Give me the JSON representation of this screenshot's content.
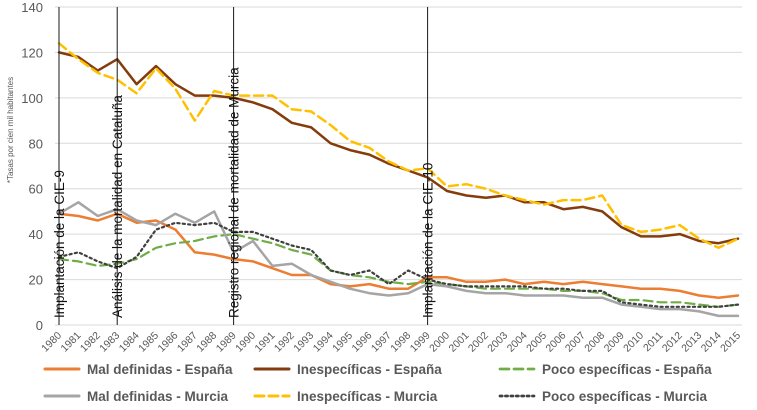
{
  "chart_data": {
    "type": "line",
    "title": "",
    "xlabel": "",
    "ylabel": "*Tasas por cien mil habitantes",
    "ylim": [
      0,
      140
    ],
    "yticks": [
      0,
      20,
      40,
      60,
      80,
      100,
      120,
      140
    ],
    "grid": true,
    "legend_position": "bottom",
    "x": [
      "1980",
      "1981",
      "1982",
      "1983",
      "1984",
      "1985",
      "1986",
      "1987",
      "1988",
      "1989",
      "1990",
      "1991",
      "1992",
      "1993",
      "1994",
      "1995",
      "1996",
      "1997",
      "1998",
      "1999",
      "2000",
      "2001",
      "2002",
      "2003",
      "2004",
      "2005",
      "2006",
      "2007",
      "2008",
      "2009",
      "2010",
      "2011",
      "2012",
      "2013",
      "2014",
      "2015"
    ],
    "series": [
      {
        "name": "Mal definidas - España",
        "color": "#ED7D31",
        "dash": "solid",
        "width": 2.5,
        "values": [
          49,
          48,
          46,
          49,
          45,
          46,
          42,
          32,
          31,
          29,
          28,
          25,
          22,
          22,
          18,
          17,
          18,
          16,
          16,
          21,
          21,
          19,
          19,
          20,
          18,
          19,
          18,
          19,
          18,
          17,
          16,
          16,
          15,
          13,
          12,
          13
        ]
      },
      {
        "name": "Inespecíficas - España",
        "color": "#843C0C",
        "dash": "solid",
        "width": 2.5,
        "values": [
          120,
          118,
          112,
          117,
          106,
          114,
          106,
          101,
          101,
          100,
          98,
          95,
          89,
          87,
          80,
          77,
          75,
          71,
          68,
          65,
          59,
          57,
          56,
          57,
          54,
          54,
          51,
          52,
          50,
          43,
          39,
          39,
          40,
          37,
          36,
          38
        ]
      },
      {
        "name": "Poco específicas - España",
        "color": "#70AD47",
        "dash": "dashed",
        "width": 2.2,
        "values": [
          29,
          28,
          26,
          27,
          29,
          34,
          36,
          37,
          39,
          40,
          38,
          36,
          33,
          31,
          24,
          22,
          21,
          19,
          18,
          19,
          18,
          17,
          16,
          16,
          16,
          16,
          15,
          15,
          14,
          11,
          11,
          10,
          10,
          9,
          8,
          9
        ]
      },
      {
        "name": "Mal definidas - Murcia",
        "color": "#A5A5A5",
        "dash": "solid",
        "width": 2.5,
        "values": [
          49,
          54,
          48,
          51,
          46,
          44,
          49,
          45,
          50,
          32,
          37,
          26,
          27,
          22,
          19,
          16,
          14,
          13,
          14,
          18,
          17,
          15,
          14,
          14,
          13,
          13,
          13,
          12,
          12,
          9,
          8,
          7,
          7,
          6,
          4,
          4
        ]
      },
      {
        "name": "Inespecíficas - Murcia",
        "color": "#FFC000",
        "dash": "dashed",
        "width": 2.5,
        "values": [
          124,
          117,
          111,
          108,
          102,
          113,
          104,
          90,
          103,
          101,
          101,
          101,
          95,
          94,
          88,
          81,
          78,
          72,
          68,
          69,
          61,
          62,
          60,
          57,
          55,
          53,
          55,
          55,
          57,
          44,
          41,
          42,
          44,
          38,
          34,
          38
        ]
      },
      {
        "name": "Poco específicas - Murcia",
        "color": "#404040",
        "dash": "dotted",
        "width": 2.2,
        "values": [
          30,
          32,
          28,
          25,
          30,
          42,
          45,
          44,
          45,
          41,
          41,
          38,
          35,
          33,
          24,
          22,
          24,
          18,
          24,
          20,
          18,
          17,
          17,
          17,
          17,
          16,
          16,
          15,
          15,
          10,
          9,
          8,
          8,
          8,
          8,
          9
        ]
      }
    ],
    "annotations": [
      {
        "label": "Implantación de la CIE-9",
        "x": "1980"
      },
      {
        "label": "Análisis de la mortalidad en Cataluña",
        "x": "1983"
      },
      {
        "label": "Registro regional de mortalidad de Murcia",
        "x": "1989"
      },
      {
        "label": "Implantación de la CIE-10",
        "x": "1999"
      }
    ]
  }
}
